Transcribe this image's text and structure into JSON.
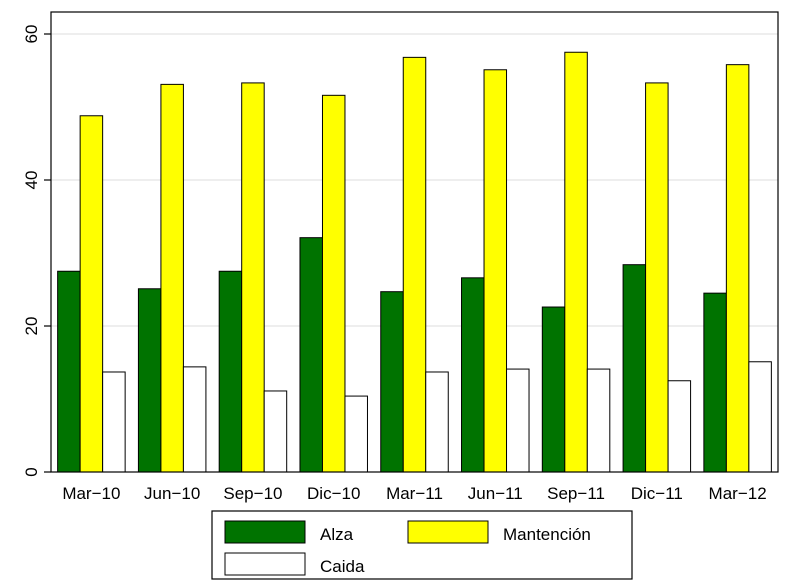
{
  "chart_data": {
    "type": "bar",
    "categories": [
      "Mar−10",
      "Jun−10",
      "Sep−10",
      "Dic−10",
      "Mar−11",
      "Jun−11",
      "Sep−11",
      "Dic−11",
      "Mar−12"
    ],
    "series": [
      {
        "name": "Alza",
        "color": "#007300",
        "values": [
          27.5,
          25.1,
          27.5,
          32.1,
          24.7,
          26.6,
          22.6,
          28.4,
          24.5
        ]
      },
      {
        "name": "Mantención",
        "color": "#ffff00",
        "values": [
          48.8,
          53.1,
          53.3,
          51.6,
          56.8,
          55.1,
          57.5,
          53.3,
          55.8
        ]
      },
      {
        "name": "Caida",
        "color": "#ffffff",
        "values": [
          13.7,
          14.4,
          11.1,
          10.4,
          13.7,
          14.1,
          14.1,
          12.5,
          15.1
        ]
      }
    ],
    "ylim": [
      0,
      60
    ],
    "yticks": [
      0,
      20,
      40,
      60
    ],
    "grid": true,
    "legend_position": "bottom"
  }
}
